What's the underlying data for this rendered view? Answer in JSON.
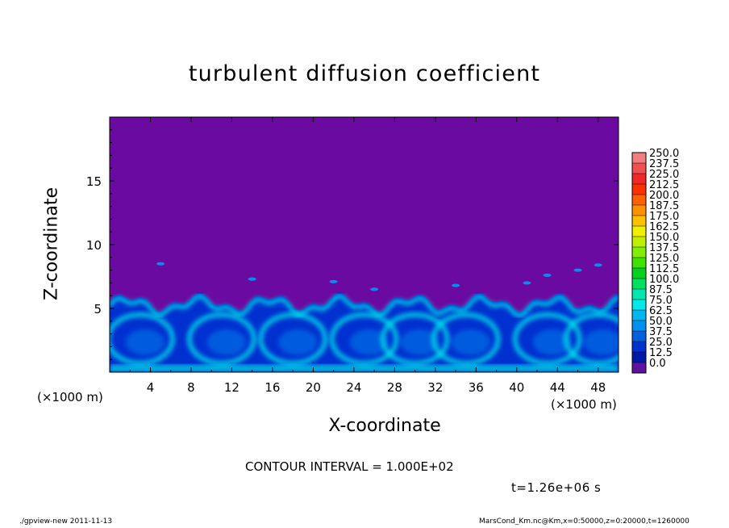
{
  "chart_data": {
    "type": "heatmap",
    "title": "turbulent diffusion coefficient",
    "xlabel": "X-coordinate",
    "ylabel": "Z-coordinate",
    "x_unit": "(×1000 m)",
    "xlim": [
      0,
      50
    ],
    "ylim": [
      0,
      20
    ],
    "x_ticks": [
      4,
      8,
      12,
      16,
      20,
      24,
      28,
      32,
      36,
      40,
      44,
      48
    ],
    "y_ticks": [
      5,
      10,
      15
    ],
    "colorbar": {
      "levels": [
        "250.0",
        "237.5",
        "225.0",
        "212.5",
        "200.0",
        "187.5",
        "175.0",
        "162.5",
        "150.0",
        "137.5",
        "125.0",
        "112.5",
        "100.0",
        "87.5",
        "75.0",
        "62.5",
        "50.0",
        "37.5",
        "25.0",
        "12.5",
        "0.0"
      ],
      "colors": [
        "#f08080",
        "#f05050",
        "#f02828",
        "#ff3000",
        "#ff6000",
        "#ff9000",
        "#ffc000",
        "#f0f000",
        "#c0f000",
        "#80f000",
        "#40e000",
        "#00d020",
        "#00e060",
        "#00e8b0",
        "#00e8e8",
        "#00b8f0",
        "#0090f0",
        "#0060e0",
        "#0030d0",
        "#0018a8",
        "#6010a0"
      ]
    },
    "contour_interval": "CONTOUR INTERVAL = 1.000E+02",
    "time": "t=1.26e+06 s",
    "background_value": 0.0,
    "turbulent_layer_top": 5.5
  },
  "footer": {
    "left": "./gpview-new  2011-11-13",
    "right": "MarsCond_Km.nc@Km,x=0:50000,z=0:20000,t=1260000"
  },
  "colors": {
    "background": "#6a0aa0",
    "turbulent_low": "#0030d0",
    "turbulent_mid": "#0090f0",
    "turbulent_high": "#00e8e8"
  }
}
